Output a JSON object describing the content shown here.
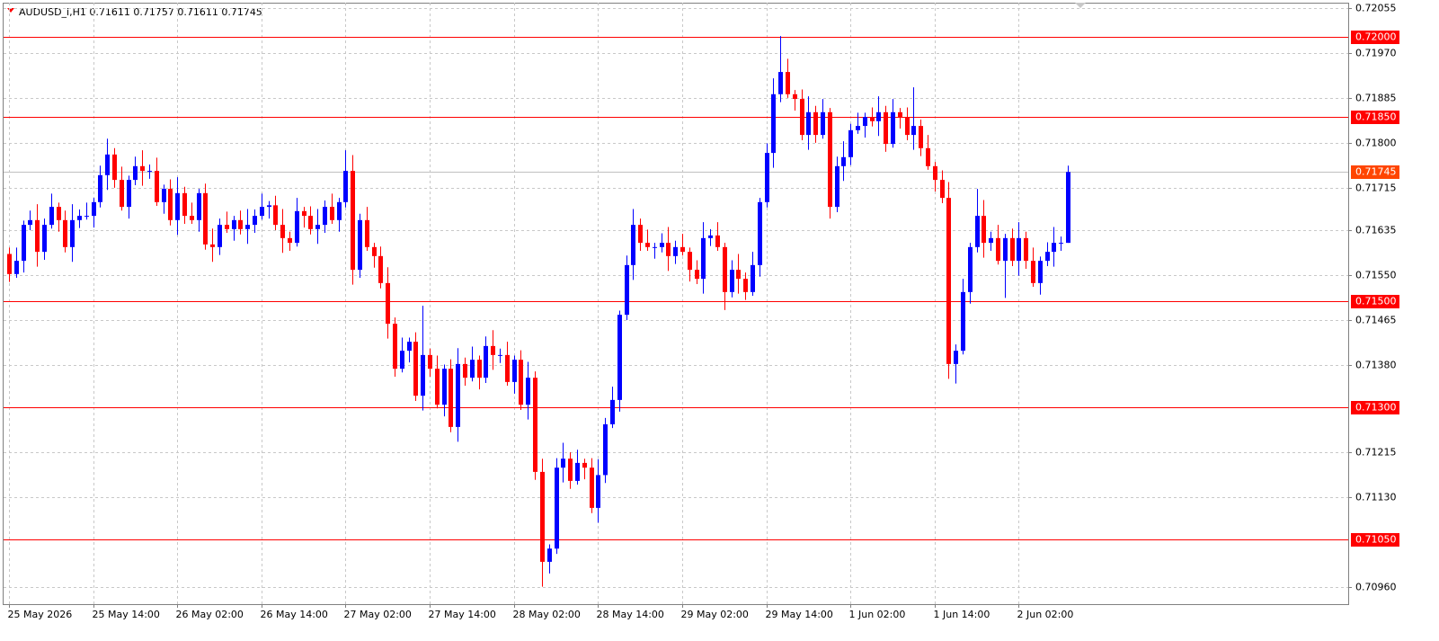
{
  "chart_data": {
    "type": "candlestick",
    "title": "AUDUSD_i,H1  0.71611 0.71757 0.71611 0.71745",
    "up_color": "#0000ff",
    "down_color": "#ff0000",
    "grid": true,
    "ylim": [
      0.70928,
      0.72065
    ],
    "yticks": [
      {
        "value": 0.72055,
        "label": "0.72055"
      },
      {
        "value": 0.7197,
        "label": "0.71970"
      },
      {
        "value": 0.71885,
        "label": "0.71885"
      },
      {
        "value": 0.718,
        "label": "0.71800"
      },
      {
        "value": 0.71715,
        "label": "0.71715"
      },
      {
        "value": 0.71635,
        "label": "0.71635"
      },
      {
        "value": 0.7155,
        "label": "0.71550"
      },
      {
        "value": 0.71465,
        "label": "0.71465"
      },
      {
        "value": 0.7138,
        "label": "0.71380"
      },
      {
        "value": 0.71215,
        "label": "0.71215"
      },
      {
        "value": 0.7113,
        "label": "0.71130"
      },
      {
        "value": 0.7096,
        "label": "0.70960"
      }
    ],
    "levels": [
      {
        "value": 0.72,
        "label": "0.72000"
      },
      {
        "value": 0.7185,
        "label": "0.71850"
      },
      {
        "value": 0.715,
        "label": "0.71500"
      },
      {
        "value": 0.713,
        "label": "0.71300"
      },
      {
        "value": 0.7105,
        "label": "0.71050"
      }
    ],
    "level_color": "#ff0000",
    "current_price": {
      "value": 0.71745,
      "label": "0.71745"
    },
    "current_price_color": "#ff4500",
    "categories": [
      "25 May 2026",
      null,
      null,
      null,
      null,
      null,
      null,
      null,
      null,
      null,
      null,
      null,
      "25 May 14:00",
      null,
      null,
      null,
      null,
      null,
      null,
      null,
      null,
      null,
      null,
      null,
      "26 May 02:00",
      null,
      null,
      null,
      null,
      null,
      null,
      null,
      null,
      null,
      null,
      null,
      "26 May 14:00",
      null,
      null,
      null,
      null,
      null,
      null,
      null,
      null,
      null,
      null,
      null,
      "27 May 02:00",
      null,
      null,
      null,
      null,
      null,
      null,
      null,
      null,
      null,
      null,
      null,
      "27 May 14:00",
      null,
      null,
      null,
      null,
      null,
      null,
      null,
      null,
      null,
      null,
      null,
      "28 May 02:00",
      null,
      null,
      null,
      null,
      null,
      null,
      null,
      null,
      null,
      null,
      null,
      "28 May 14:00",
      null,
      null,
      null,
      null,
      null,
      null,
      null,
      null,
      null,
      null,
      null,
      "29 May 02:00",
      null,
      null,
      null,
      null,
      null,
      null,
      null,
      null,
      null,
      null,
      null,
      "29 May 14:00",
      null,
      null,
      null,
      null,
      null,
      null,
      null,
      null,
      null,
      null,
      null,
      "1 Jun 02:00",
      null,
      null,
      null,
      null,
      null,
      null,
      null,
      null,
      null,
      null,
      null,
      "1 Jun 14:00",
      null,
      null,
      null,
      null,
      null,
      null,
      null,
      null,
      null,
      null,
      null,
      "2 Jun 02:00",
      null,
      null,
      null,
      null,
      null,
      null,
      null
    ],
    "open": [
      0.7159,
      0.71552,
      0.71577,
      0.71645,
      0.71654,
      0.71594,
      0.71645,
      0.71679,
      0.71654,
      0.71603,
      0.71654,
      0.71662,
      0.71662,
      0.71688,
      0.71739,
      0.71778,
      0.7173,
      0.71679,
      0.7173,
      0.71756,
      0.71747,
      0.71747,
      0.71688,
      0.71713,
      0.71654,
      0.71705,
      0.71662,
      0.71654,
      0.71705,
      0.71608,
      0.71603,
      0.71645,
      0.71637,
      0.71654,
      0.71637,
      0.71645,
      0.71662,
      0.71679,
      0.71682,
      0.71645,
      0.7162,
      0.71611,
      0.71671,
      0.71662,
      0.71637,
      0.71645,
      0.71679,
      0.71654,
      0.71688,
      0.71747,
      0.7156,
      0.71654,
      0.71603,
      0.71586,
      0.71535,
      0.71458,
      0.71373,
      0.71407,
      0.71424,
      0.71322,
      0.71399,
      0.71373,
      0.71305,
      0.71373,
      0.71263,
      0.71382,
      0.71356,
      0.7139,
      0.71356,
      0.71416,
      0.71399,
      0.71399,
      0.71348,
      0.7139,
      0.71305,
      0.71356,
      0.71178,
      0.71008,
      0.71033,
      0.71186,
      0.71203,
      0.71161,
      0.71195,
      0.71186,
      0.7111,
      0.71172,
      0.71268,
      0.71314,
      0.71475,
      0.71569,
      0.71645,
      0.71611,
      0.71603,
      0.71603,
      0.71611,
      0.71586,
      0.71603,
      0.71594,
      0.7156,
      0.71543,
      0.7162,
      0.71625,
      0.71603,
      0.71518,
      0.7156,
      0.71543,
      0.71518,
      0.71569,
      0.71688,
      0.71781,
      0.71892,
      0.71934,
      0.71892,
      0.71883,
      0.71815,
      0.71858,
      0.71815,
      0.71858,
      0.71679,
      0.71756,
      0.71773,
      0.71824,
      0.71832,
      0.71849,
      0.71841,
      0.71858,
      0.71798,
      0.71858,
      0.71849,
      0.71815,
      0.71832,
      0.7179,
      0.71756,
      0.7173,
      0.71696,
      0.71382,
      0.71407,
      0.71518,
      0.71603,
      0.71662,
      0.71611,
      0.7162,
      0.71577,
      0.7162,
      0.71577,
      0.7162,
      0.71577,
      0.71535,
      0.71577,
      0.71594,
      0.71611,
      0.71611
    ],
    "high": [
      0.71602,
      0.71602,
      0.71653,
      0.71672,
      0.71684,
      0.71657,
      0.71704,
      0.71687,
      0.71672,
      0.71684,
      0.71674,
      0.71687,
      0.71696,
      0.71757,
      0.71808,
      0.7179,
      0.71755,
      0.71738,
      0.71774,
      0.71786,
      0.71759,
      0.71772,
      0.71721,
      0.71731,
      0.71735,
      0.71717,
      0.71687,
      0.71713,
      0.71723,
      0.71638,
      0.71657,
      0.7167,
      0.71662,
      0.71672,
      0.71675,
      0.71674,
      0.71704,
      0.7169,
      0.717,
      0.71675,
      0.71632,
      0.71696,
      0.71679,
      0.7168,
      0.71675,
      0.71691,
      0.71704,
      0.71696,
      0.71786,
      0.71777,
      0.71666,
      0.71679,
      0.71611,
      0.71604,
      0.71565,
      0.7147,
      0.71432,
      0.71432,
      0.71442,
      0.71492,
      0.71411,
      0.71398,
      0.71381,
      0.71391,
      0.71412,
      0.71394,
      0.71415,
      0.71398,
      0.71434,
      0.71446,
      0.71411,
      0.71424,
      0.71398,
      0.71408,
      0.71386,
      0.71368,
      0.71203,
      0.71041,
      0.71204,
      0.71233,
      0.71215,
      0.7122,
      0.71203,
      0.71204,
      0.71202,
      0.7128,
      0.71339,
      0.71483,
      0.71587,
      0.71675,
      0.71657,
      0.71636,
      0.71611,
      0.71629,
      0.71641,
      0.71615,
      0.71628,
      0.71602,
      0.71578,
      0.7165,
      0.71637,
      0.7165,
      0.71611,
      0.71578,
      0.7159,
      0.71555,
      0.71594,
      0.71696,
      0.71799,
      0.71922,
      0.72002,
      0.71959,
      0.719,
      0.71901,
      0.71888,
      0.7187,
      0.71883,
      0.71866,
      0.71774,
      0.71803,
      0.71836,
      0.71857,
      0.71857,
      0.71867,
      0.71888,
      0.7187,
      0.71883,
      0.71866,
      0.71867,
      0.71905,
      0.71844,
      0.71815,
      0.71764,
      0.71748,
      0.71726,
      0.71419,
      0.71543,
      0.71611,
      0.71713,
      0.71692,
      0.71632,
      0.71645,
      0.71628,
      0.71638,
      0.7165,
      0.71632,
      0.71602,
      0.71585,
      0.71612,
      0.71641,
      0.71623,
      0.71757
    ],
    "low": [
      0.71537,
      0.71545,
      0.71555,
      0.71635,
      0.71566,
      0.71579,
      0.71638,
      0.71632,
      0.71593,
      0.71575,
      0.71639,
      0.71655,
      0.7164,
      0.71678,
      0.71711,
      0.71715,
      0.71672,
      0.71657,
      0.7172,
      0.71719,
      0.71732,
      0.71681,
      0.71666,
      0.71644,
      0.71626,
      0.71647,
      0.71647,
      0.71632,
      0.71598,
      0.71575,
      0.71588,
      0.7163,
      0.71615,
      0.71627,
      0.71609,
      0.7163,
      0.71655,
      0.71657,
      0.71635,
      0.71592,
      0.71596,
      0.71604,
      0.7164,
      0.71627,
      0.71609,
      0.7163,
      0.71647,
      0.71632,
      0.71678,
      0.71532,
      0.71545,
      0.71596,
      0.71564,
      0.71525,
      0.7143,
      0.71358,
      0.71366,
      0.71385,
      0.71312,
      0.71294,
      0.71358,
      0.71298,
      0.71283,
      0.71253,
      0.71235,
      0.71341,
      0.71349,
      0.71334,
      0.71346,
      0.71371,
      0.71384,
      0.71341,
      0.71326,
      0.71295,
      0.71277,
      0.71163,
      0.70961,
      0.70986,
      0.71023,
      0.71158,
      0.71146,
      0.71154,
      0.71164,
      0.711,
      0.71082,
      0.71157,
      0.71261,
      0.71292,
      0.71465,
      0.71541,
      0.71596,
      0.71596,
      0.71581,
      0.71593,
      0.71558,
      0.71571,
      0.71587,
      0.71538,
      0.71533,
      0.71515,
      0.71605,
      0.71596,
      0.71484,
      0.71508,
      0.71515,
      0.71503,
      0.71511,
      0.71547,
      0.71678,
      0.71753,
      0.71877,
      0.71885,
      0.71861,
      0.71805,
      0.71787,
      0.718,
      0.71808,
      0.71657,
      0.71669,
      0.71728,
      0.71758,
      0.71817,
      0.7181,
      0.71831,
      0.71813,
      0.71783,
      0.71791,
      0.71827,
      0.71805,
      0.71787,
      0.71775,
      0.71749,
      0.71708,
      0.71686,
      0.71354,
      0.71345,
      0.714,
      0.71496,
      0.71593,
      0.71583,
      0.71596,
      0.7157,
      0.71507,
      0.71567,
      0.71549,
      0.71562,
      0.71528,
      0.71513,
      0.71567,
      0.71566,
      0.71596,
      0.71611
    ],
    "close": [
      0.71552,
      0.71577,
      0.71645,
      0.71654,
      0.71594,
      0.71645,
      0.71679,
      0.71654,
      0.71603,
      0.71654,
      0.71662,
      0.71662,
      0.71688,
      0.71739,
      0.71778,
      0.7173,
      0.71679,
      0.7173,
      0.71756,
      0.71747,
      0.71747,
      0.71688,
      0.71713,
      0.71654,
      0.71705,
      0.71662,
      0.71654,
      0.71705,
      0.71608,
      0.71603,
      0.71645,
      0.71637,
      0.71654,
      0.71637,
      0.71645,
      0.71662,
      0.71679,
      0.71682,
      0.71645,
      0.7162,
      0.71611,
      0.71671,
      0.71662,
      0.71637,
      0.71645,
      0.71679,
      0.71654,
      0.71688,
      0.71747,
      0.7156,
      0.71654,
      0.71603,
      0.71586,
      0.71535,
      0.71458,
      0.71373,
      0.71407,
      0.71424,
      0.71322,
      0.71399,
      0.71373,
      0.71305,
      0.71373,
      0.71263,
      0.71382,
      0.71356,
      0.7139,
      0.71356,
      0.71416,
      0.71399,
      0.71399,
      0.71348,
      0.7139,
      0.71305,
      0.71356,
      0.71178,
      0.71008,
      0.71033,
      0.71186,
      0.71203,
      0.71161,
      0.71195,
      0.71186,
      0.7111,
      0.71172,
      0.71268,
      0.71314,
      0.71475,
      0.71569,
      0.71645,
      0.71611,
      0.71603,
      0.71603,
      0.71611,
      0.71586,
      0.71603,
      0.71594,
      0.7156,
      0.71543,
      0.7162,
      0.71625,
      0.71603,
      0.71518,
      0.7156,
      0.71543,
      0.71518,
      0.71569,
      0.71688,
      0.71781,
      0.71892,
      0.71934,
      0.71892,
      0.71883,
      0.71815,
      0.71858,
      0.71815,
      0.71858,
      0.71679,
      0.71756,
      0.71773,
      0.71824,
      0.71832,
      0.71849,
      0.71841,
      0.71858,
      0.71798,
      0.71858,
      0.71849,
      0.71815,
      0.71832,
      0.7179,
      0.71756,
      0.7173,
      0.71696,
      0.71382,
      0.71407,
      0.71518,
      0.71603,
      0.71662,
      0.71611,
      0.7162,
      0.71577,
      0.7162,
      0.71577,
      0.7162,
      0.71577,
      0.71535,
      0.71577,
      0.71594,
      0.71611,
      0.71611,
      0.71745
    ]
  }
}
